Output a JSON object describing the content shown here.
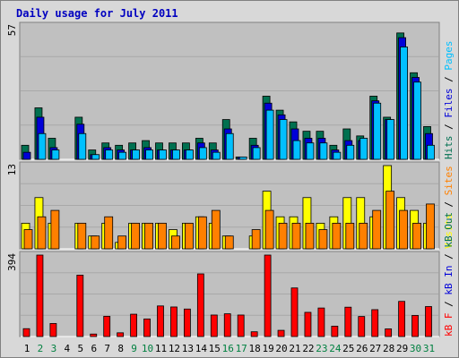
{
  "chart_data": {
    "type": "bar",
    "title": "Daily usage for July 2011",
    "days": [
      "1",
      "2",
      "3",
      "4",
      "5",
      "6",
      "7",
      "8",
      "9",
      "10",
      "11",
      "12",
      "13",
      "14",
      "15",
      "16",
      "17",
      "18",
      "19",
      "20",
      "21",
      "22",
      "23",
      "24",
      "25",
      "26",
      "27",
      "28",
      "29",
      "30",
      "31"
    ],
    "weekend_days": [
      2,
      3,
      9,
      10,
      16,
      17,
      23,
      24,
      30,
      31
    ],
    "panels": [
      {
        "id": "hits",
        "max_label": "57",
        "ylim": [
          0,
          57
        ],
        "series": [
          {
            "name": "Hits",
            "color": "#007050",
            "values": [
              6,
              22,
              9,
              0,
              18,
              4,
              7,
              6,
              7,
              8,
              7,
              7,
              7,
              9,
              7,
              17,
              1,
              9,
              27,
              21,
              16,
              12,
              12,
              6,
              13,
              10,
              27,
              18,
              54,
              37,
              14
            ]
          },
          {
            "name": "Files",
            "color": "#0000d8",
            "values": [
              3,
              18,
              5,
              0,
              15,
              2,
              5,
              4,
              4,
              5,
              4,
              4,
              4,
              7,
              4,
              13,
              1,
              6,
              24,
              19,
              13,
              9,
              9,
              4,
              8,
              8,
              25,
              17,
              52,
              35,
              11
            ]
          },
          {
            "name": "Pages",
            "color": "#00c0ff",
            "values": [
              0,
              11,
              4,
              0,
              11,
              2,
              4,
              3,
              4,
              4,
              4,
              4,
              4,
              5,
              3,
              11,
              1,
              5,
              21,
              17,
              8,
              7,
              7,
              3,
              6,
              9,
              24,
              17,
              48,
              33,
              6
            ]
          }
        ],
        "legend": [
          {
            "text": "Hits",
            "color": "#007050"
          },
          {
            "text": " / ",
            "color": "#000000"
          },
          {
            "text": "Files",
            "color": "#0000d8"
          },
          {
            "text": " / ",
            "color": "#000000"
          },
          {
            "text": "Pages",
            "color": "#00c0ff"
          }
        ]
      },
      {
        "id": "visits",
        "max_label": "13",
        "ylim": [
          0,
          13
        ],
        "series": [
          {
            "name": "Visits",
            "color": "#ffff00",
            "values": [
              4,
              8,
              4,
              0,
              4,
              2,
              4,
              1,
              4,
              4,
              4,
              3,
              4,
              5,
              4,
              2,
              0,
              2,
              9,
              5,
              5,
              8,
              4,
              5,
              8,
              8,
              5,
              13,
              8,
              6,
              4
            ]
          },
          {
            "name": "Sites",
            "color": "#ff8000",
            "values": [
              3,
              5,
              6,
              0,
              4,
              2,
              5,
              2,
              4,
              4,
              4,
              2,
              4,
              5,
              6,
              2,
              0,
              3,
              6,
              4,
              4,
              4,
              3,
              4,
              4,
              4,
              6,
              9,
              6,
              4,
              7
            ]
          }
        ],
        "legend": [
          {
            "text": "Visits",
            "color": "#ffff00"
          },
          {
            "text": " / ",
            "color": "#000000"
          },
          {
            "text": "Sites",
            "color": "#ff8000"
          }
        ]
      },
      {
        "id": "kbytes",
        "max_label": "394",
        "ylim": [
          0,
          394
        ],
        "series": [
          {
            "name": "kB F",
            "color": "#ff0000",
            "values": [
              38,
              394,
              63,
              0,
              297,
              12,
              98,
              18,
              108,
              85,
              148,
              143,
              133,
              303,
              104,
              110,
              104,
              23,
              394,
              30,
              235,
              117,
              138,
              50,
              142,
              97,
              130,
              37,
              170,
              102,
              145
            ]
          }
        ],
        "legend": [
          {
            "text": "kB F",
            "color": "#ff0000"
          },
          {
            "text": " / ",
            "color": "#000000"
          },
          {
            "text": "kB In",
            "color": "#0000d8"
          },
          {
            "text": " / ",
            "color": "#000000"
          },
          {
            "text": "kB Out",
            "color": "#007050"
          }
        ]
      }
    ],
    "colors": {
      "plot_bg": "#c0c0c0",
      "page_bg": "#d8d8d8",
      "weekday_label": "#000000",
      "weekend_label": "#008040"
    }
  }
}
